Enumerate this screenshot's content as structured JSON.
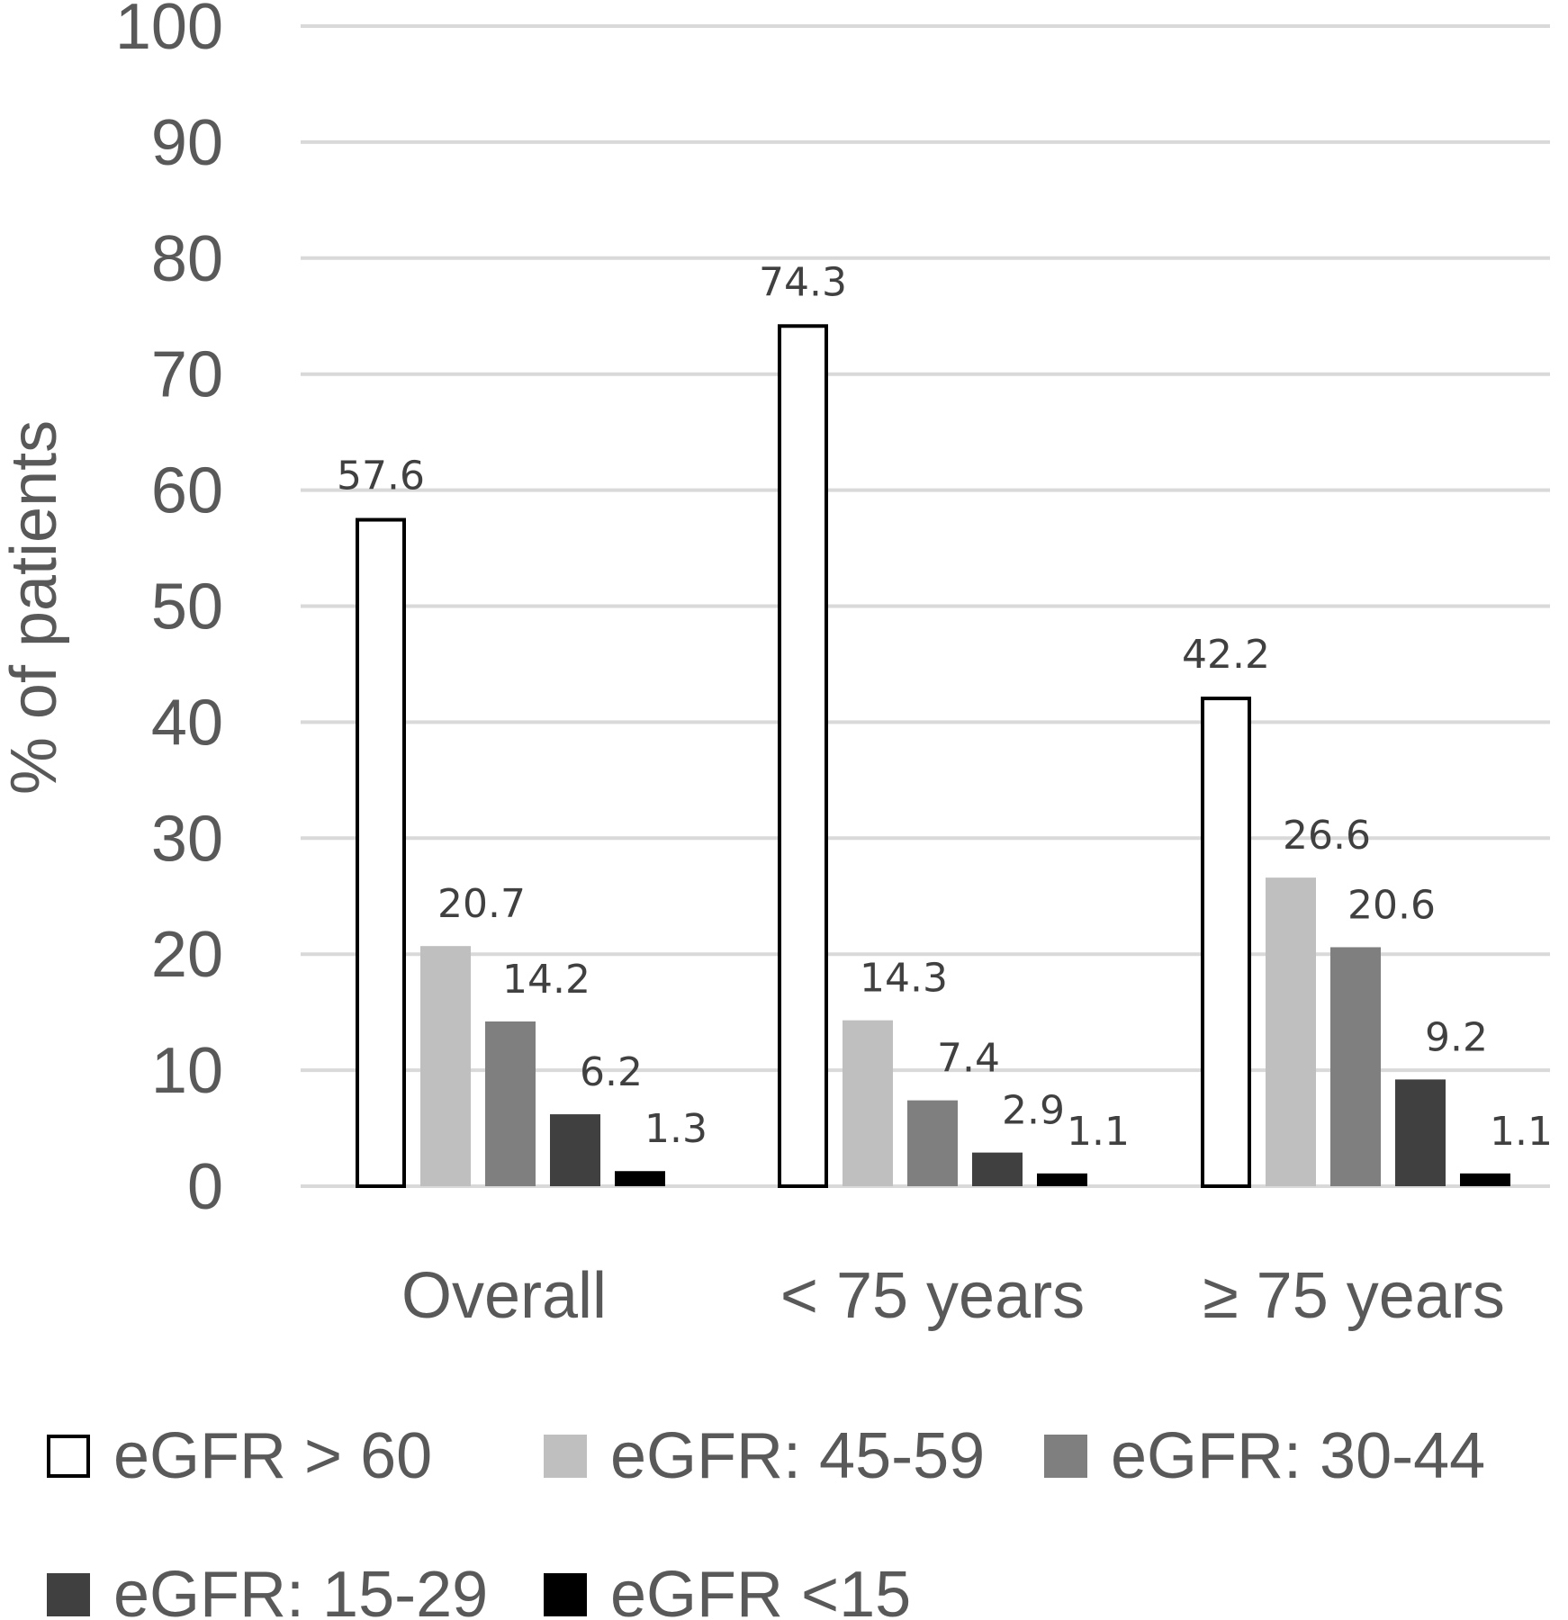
{
  "chart_data": {
    "type": "bar",
    "categories": [
      "Overall",
      "< 75 years",
      "≥ 75 years"
    ],
    "ylabel": "% of patients",
    "xlabel": "",
    "ylim": [
      0,
      100
    ],
    "yticks": [
      "0",
      "10",
      "20",
      "30",
      "40",
      "50",
      "60",
      "70",
      "80",
      "90",
      "100"
    ],
    "grid": true,
    "legend_position": "bottom",
    "series": [
      {
        "name": "eGFR > 60",
        "values": [
          57.6,
          74.3,
          42.2
        ],
        "labels": [
          "57.6",
          "74.3",
          "42.2"
        ],
        "color": "#ffffff",
        "stroke": "#000000"
      },
      {
        "name": "eGFR: 45-59",
        "values": [
          20.7,
          14.3,
          26.6
        ],
        "labels": [
          "20.7",
          "14.3",
          "26.6"
        ],
        "color": "#bfbfbf"
      },
      {
        "name": "eGFR: 30-44",
        "values": [
          14.2,
          7.4,
          20.6
        ],
        "labels": [
          "14.2",
          "7.4",
          "20.6"
        ],
        "color": "#7f7f7f"
      },
      {
        "name": "eGFR: 15-29",
        "values": [
          6.2,
          2.9,
          9.2
        ],
        "labels": [
          "6.2",
          "2.9",
          "9.2"
        ],
        "color": "#404040"
      },
      {
        "name": "eGFR <15",
        "values": [
          1.3,
          1.1,
          1.1
        ],
        "labels": [
          "1.3",
          "1.1",
          "1.1"
        ],
        "color": "#000000"
      }
    ]
  }
}
